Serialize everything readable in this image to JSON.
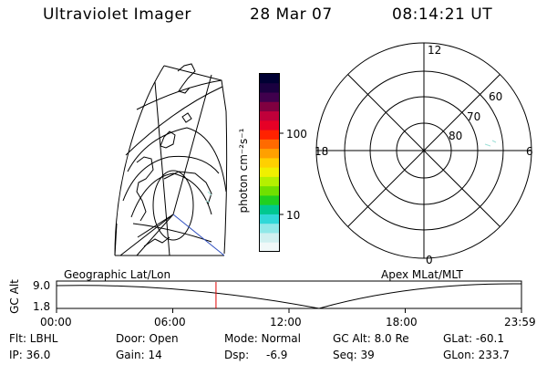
{
  "header": {
    "title": "Ultraviolet Imager",
    "date": "28 Mar 07",
    "time": "08:14:21 UT"
  },
  "colorbar": {
    "label": "photon cm⁻²s⁻¹",
    "ticks": [
      "100",
      "10"
    ],
    "colors": [
      "#000033",
      "#1a0040",
      "#40004d",
      "#800040",
      "#c0003a",
      "#e60026",
      "#ff2200",
      "#ff6a00",
      "#ffa000",
      "#ffd000",
      "#f0f000",
      "#b4f000",
      "#70e000",
      "#20d020",
      "#00c890",
      "#30d8d8",
      "#90e8e8",
      "#d0f0f0",
      "#f0f8f8"
    ]
  },
  "polar": {
    "labels": [
      "12",
      "18",
      "6",
      "0",
      "60",
      "70",
      "80"
    ]
  },
  "timeline": {
    "left_label": "Geographic Lat/Lon",
    "right_label": "Apex MLat/MLT",
    "yaxis_label": "GC Alt",
    "y_ticks": [
      "9.0",
      "1.8"
    ],
    "x_ticks": [
      "00:00",
      "06:00",
      "12:00",
      "18:00",
      "23:59"
    ],
    "current_time_fraction": 0.343
  },
  "footer": {
    "row1": [
      "Flt: LBHL",
      "Door: Open",
      "Mode: Normal",
      "GC Alt: 8.0 Re",
      "GLat: -60.1"
    ],
    "row2": [
      "IP: 36.0",
      "Gain: 14",
      "Dsp:",
      "-6.9",
      "Seq: 39",
      "GLon: 233.7"
    ]
  }
}
